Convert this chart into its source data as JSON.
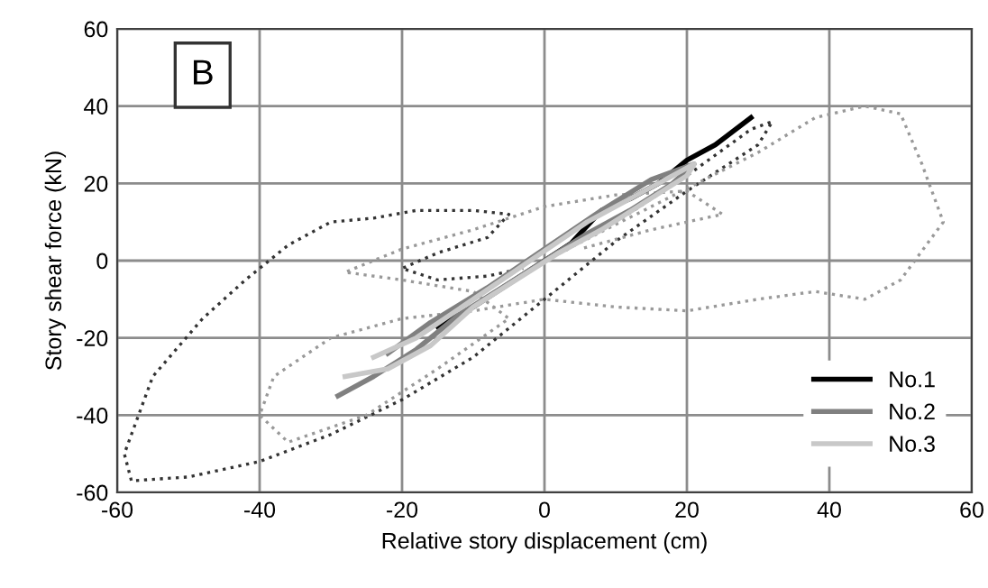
{
  "chart_data": {
    "type": "line",
    "xlabel": "Relative story displacement (cm)",
    "ylabel": "Story shear force (kN)",
    "annotations": [
      "B"
    ],
    "xlim": [
      -60,
      60
    ],
    "ylim": [
      -60,
      60
    ],
    "xticks": [
      -60,
      -40,
      -20,
      0,
      20,
      40,
      60
    ],
    "yticks": [
      -60,
      -40,
      -20,
      0,
      20,
      40,
      60
    ],
    "grid": true,
    "legend": "bottom right",
    "marker": "none",
    "series": [
      {
        "color": "#333333",
        "line_style": "dotted",
        "x": [
          0,
          10,
          20,
          29,
          32,
          30,
          20,
          10,
          0,
          -10,
          -20,
          -30,
          -40,
          -50,
          -58,
          -59,
          -55,
          -48,
          -42,
          -36,
          -30,
          -24,
          -18,
          -10,
          -5,
          -8,
          -15,
          -20,
          -15,
          -8,
          -3
        ],
        "values": [
          0,
          10,
          22,
          34,
          36,
          30,
          18,
          5,
          -10,
          -25,
          -36,
          -45,
          -52,
          -56,
          -57,
          -50,
          -30,
          -15,
          -5,
          4,
          10,
          11,
          13,
          13,
          12,
          6,
          2,
          -2,
          -5,
          -4,
          -2
        ]
      },
      {
        "color": "#999999",
        "line_style": "dotted",
        "x": [
          0,
          15,
          30,
          38,
          45,
          50,
          53,
          56,
          50,
          45,
          38,
          30,
          20,
          10,
          0,
          -10,
          -20,
          -30,
          -38,
          -40,
          -36,
          -25,
          -15,
          -5,
          -10,
          -20,
          -28,
          -20,
          -10,
          0,
          10,
          20,
          25,
          15,
          5
        ],
        "values": [
          0,
          14,
          28,
          37,
          40,
          38,
          25,
          10,
          -5,
          -10,
          -8,
          -10,
          -13,
          -12,
          -10,
          -13,
          -15,
          -20,
          -30,
          -40,
          -47,
          -40,
          -28,
          -15,
          -8,
          -5,
          -3,
          3,
          8,
          14,
          17,
          18,
          12,
          8,
          3
        ]
      },
      {
        "name": "No.1",
        "color": "#000000",
        "line_style": "solid",
        "x": [
          -15,
          -10,
          -5,
          0,
          5,
          3,
          8,
          12,
          16,
          20,
          24,
          29
        ],
        "values": [
          -17,
          -12,
          -6,
          0,
          6,
          3,
          13,
          16,
          20,
          26,
          30,
          37
        ]
      },
      {
        "name": "No.2",
        "color": "#808080",
        "line_style": "solid",
        "x": [
          -29,
          -24,
          -18,
          -12,
          -6,
          0,
          6,
          12,
          18,
          21,
          15,
          8,
          0,
          -8,
          -16,
          -22
        ],
        "values": [
          -35,
          -30,
          -23,
          -14,
          -7,
          0,
          7,
          13,
          20,
          25,
          21,
          13,
          3,
          -7,
          -16,
          -24
        ]
      },
      {
        "name": "No.3",
        "color": "#c8c8c8",
        "line_style": "solid",
        "x": [
          -28,
          -22,
          -16,
          -10,
          -4,
          2,
          8,
          14,
          20,
          21,
          14,
          6,
          -2,
          -10,
          -18,
          -24
        ],
        "values": [
          -30,
          -28,
          -22,
          -12,
          -5,
          2,
          8,
          15,
          22,
          25,
          18,
          10,
          0,
          -10,
          -20,
          -25
        ]
      }
    ]
  }
}
